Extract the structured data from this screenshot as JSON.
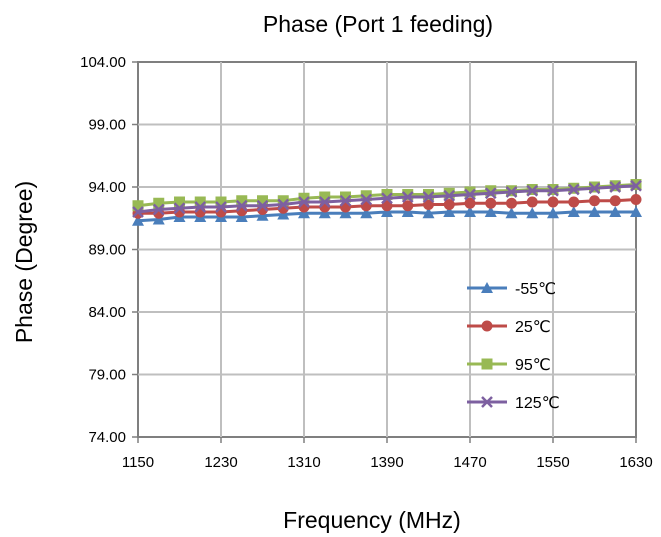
{
  "chart_data": {
    "type": "line",
    "title": "Phase (Port 1 feeding)",
    "xlabel": "Frequency (MHz)",
    "ylabel": "Phase (Degree)",
    "xlim": [
      1150,
      1630
    ],
    "ylim": [
      74,
      104
    ],
    "x_ticks": [
      "1150",
      "1230",
      "1310",
      "1390",
      "1470",
      "1550",
      "1630"
    ],
    "y_ticks": [
      "74.00",
      "79.00",
      "84.00",
      "89.00",
      "94.00",
      "99.00",
      "104.00"
    ],
    "grid": true,
    "legend_position": "right-inside",
    "x": [
      1150,
      1170,
      1190,
      1210,
      1230,
      1250,
      1270,
      1290,
      1310,
      1330,
      1350,
      1370,
      1390,
      1410,
      1430,
      1450,
      1470,
      1490,
      1510,
      1530,
      1550,
      1570,
      1590,
      1610,
      1630
    ],
    "series": [
      {
        "name": "-55℃",
        "color": "#4a7ebb",
        "marker": "triangle",
        "values": [
          91.3,
          91.4,
          91.6,
          91.6,
          91.6,
          91.6,
          91.7,
          91.8,
          91.9,
          91.9,
          91.9,
          91.9,
          92.0,
          92.0,
          91.9,
          92.0,
          92.0,
          92.0,
          91.9,
          91.9,
          91.9,
          92.0,
          92.0,
          92.0,
          92.0
        ]
      },
      {
        "name": "25℃",
        "color": "#be4b48",
        "marker": "circle",
        "values": [
          91.9,
          91.9,
          92.0,
          92.0,
          92.0,
          92.1,
          92.2,
          92.3,
          92.4,
          92.4,
          92.4,
          92.5,
          92.5,
          92.5,
          92.6,
          92.6,
          92.7,
          92.7,
          92.7,
          92.8,
          92.8,
          92.8,
          92.9,
          92.9,
          93.0
        ]
      },
      {
        "name": "95℃",
        "color": "#98b954",
        "marker": "square",
        "values": [
          92.5,
          92.7,
          92.8,
          92.8,
          92.8,
          92.9,
          92.9,
          92.9,
          93.1,
          93.2,
          93.2,
          93.3,
          93.4,
          93.4,
          93.4,
          93.5,
          93.6,
          93.7,
          93.7,
          93.8,
          93.8,
          93.9,
          94.0,
          94.1,
          94.2
        ]
      },
      {
        "name": "125℃",
        "color": "#7d60a0",
        "marker": "x",
        "values": [
          92.0,
          92.2,
          92.3,
          92.4,
          92.4,
          92.5,
          92.5,
          92.6,
          92.8,
          92.8,
          92.9,
          93.0,
          93.1,
          93.2,
          93.2,
          93.3,
          93.4,
          93.5,
          93.6,
          93.7,
          93.7,
          93.8,
          93.9,
          94.0,
          94.1
        ]
      }
    ]
  }
}
